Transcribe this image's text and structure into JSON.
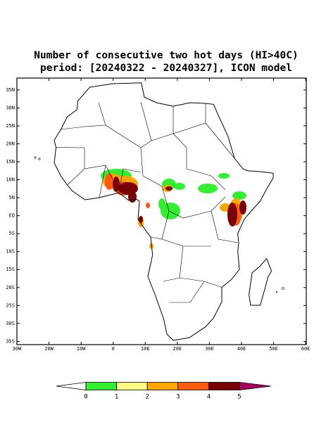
{
  "map": {
    "title": "Number of consecutive two hot days (HI>40C)",
    "subtitle": "period: [20240322 - 20240327], ICON model",
    "xlim": [
      -30,
      60.2
    ],
    "ylim": [
      -35.9,
      38.3
    ],
    "xticks": [
      {
        "value": -30,
        "label": "30W"
      },
      {
        "value": -20,
        "label": "20W"
      },
      {
        "value": -10,
        "label": "10W"
      },
      0,
      {
        "value": 10,
        "label": "10E"
      },
      {
        "value": 20,
        "label": "20E"
      },
      {
        "value": 30,
        "label": "30E"
      },
      {
        "value": 40,
        "label": "40E"
      },
      {
        "value": 50,
        "label": "50E"
      },
      {
        "value": 60,
        "label": "60E"
      }
    ],
    "yticks": [
      {
        "value": 35,
        "label": "35N"
      },
      {
        "value": 30,
        "label": "30N"
      },
      {
        "value": 25,
        "label": "25N"
      },
      {
        "value": 20,
        "label": "20N"
      },
      {
        "value": 15,
        "label": "15N"
      },
      {
        "value": 10,
        "label": "10N"
      },
      {
        "value": 5,
        "label": "5N"
      },
      {
        "value": 0,
        "label": "EQ"
      },
      {
        "value": -5,
        "label": "5S"
      },
      {
        "value": -10,
        "label": "10S"
      },
      {
        "value": -15,
        "label": "15S"
      },
      {
        "value": -20,
        "label": "20S"
      },
      {
        "value": -25,
        "label": "25S"
      },
      {
        "value": -30,
        "label": "30S"
      },
      {
        "value": -35,
        "label": "35S"
      }
    ],
    "colorbar": {
      "levels": [
        0,
        1,
        2,
        3,
        4,
        5
      ],
      "colors": [
        "#ffffff",
        "#33ee33",
        "#ffff80",
        "#ffa500",
        "#ff5a10",
        "#7a0000",
        "#a8005c"
      ]
    }
  }
}
